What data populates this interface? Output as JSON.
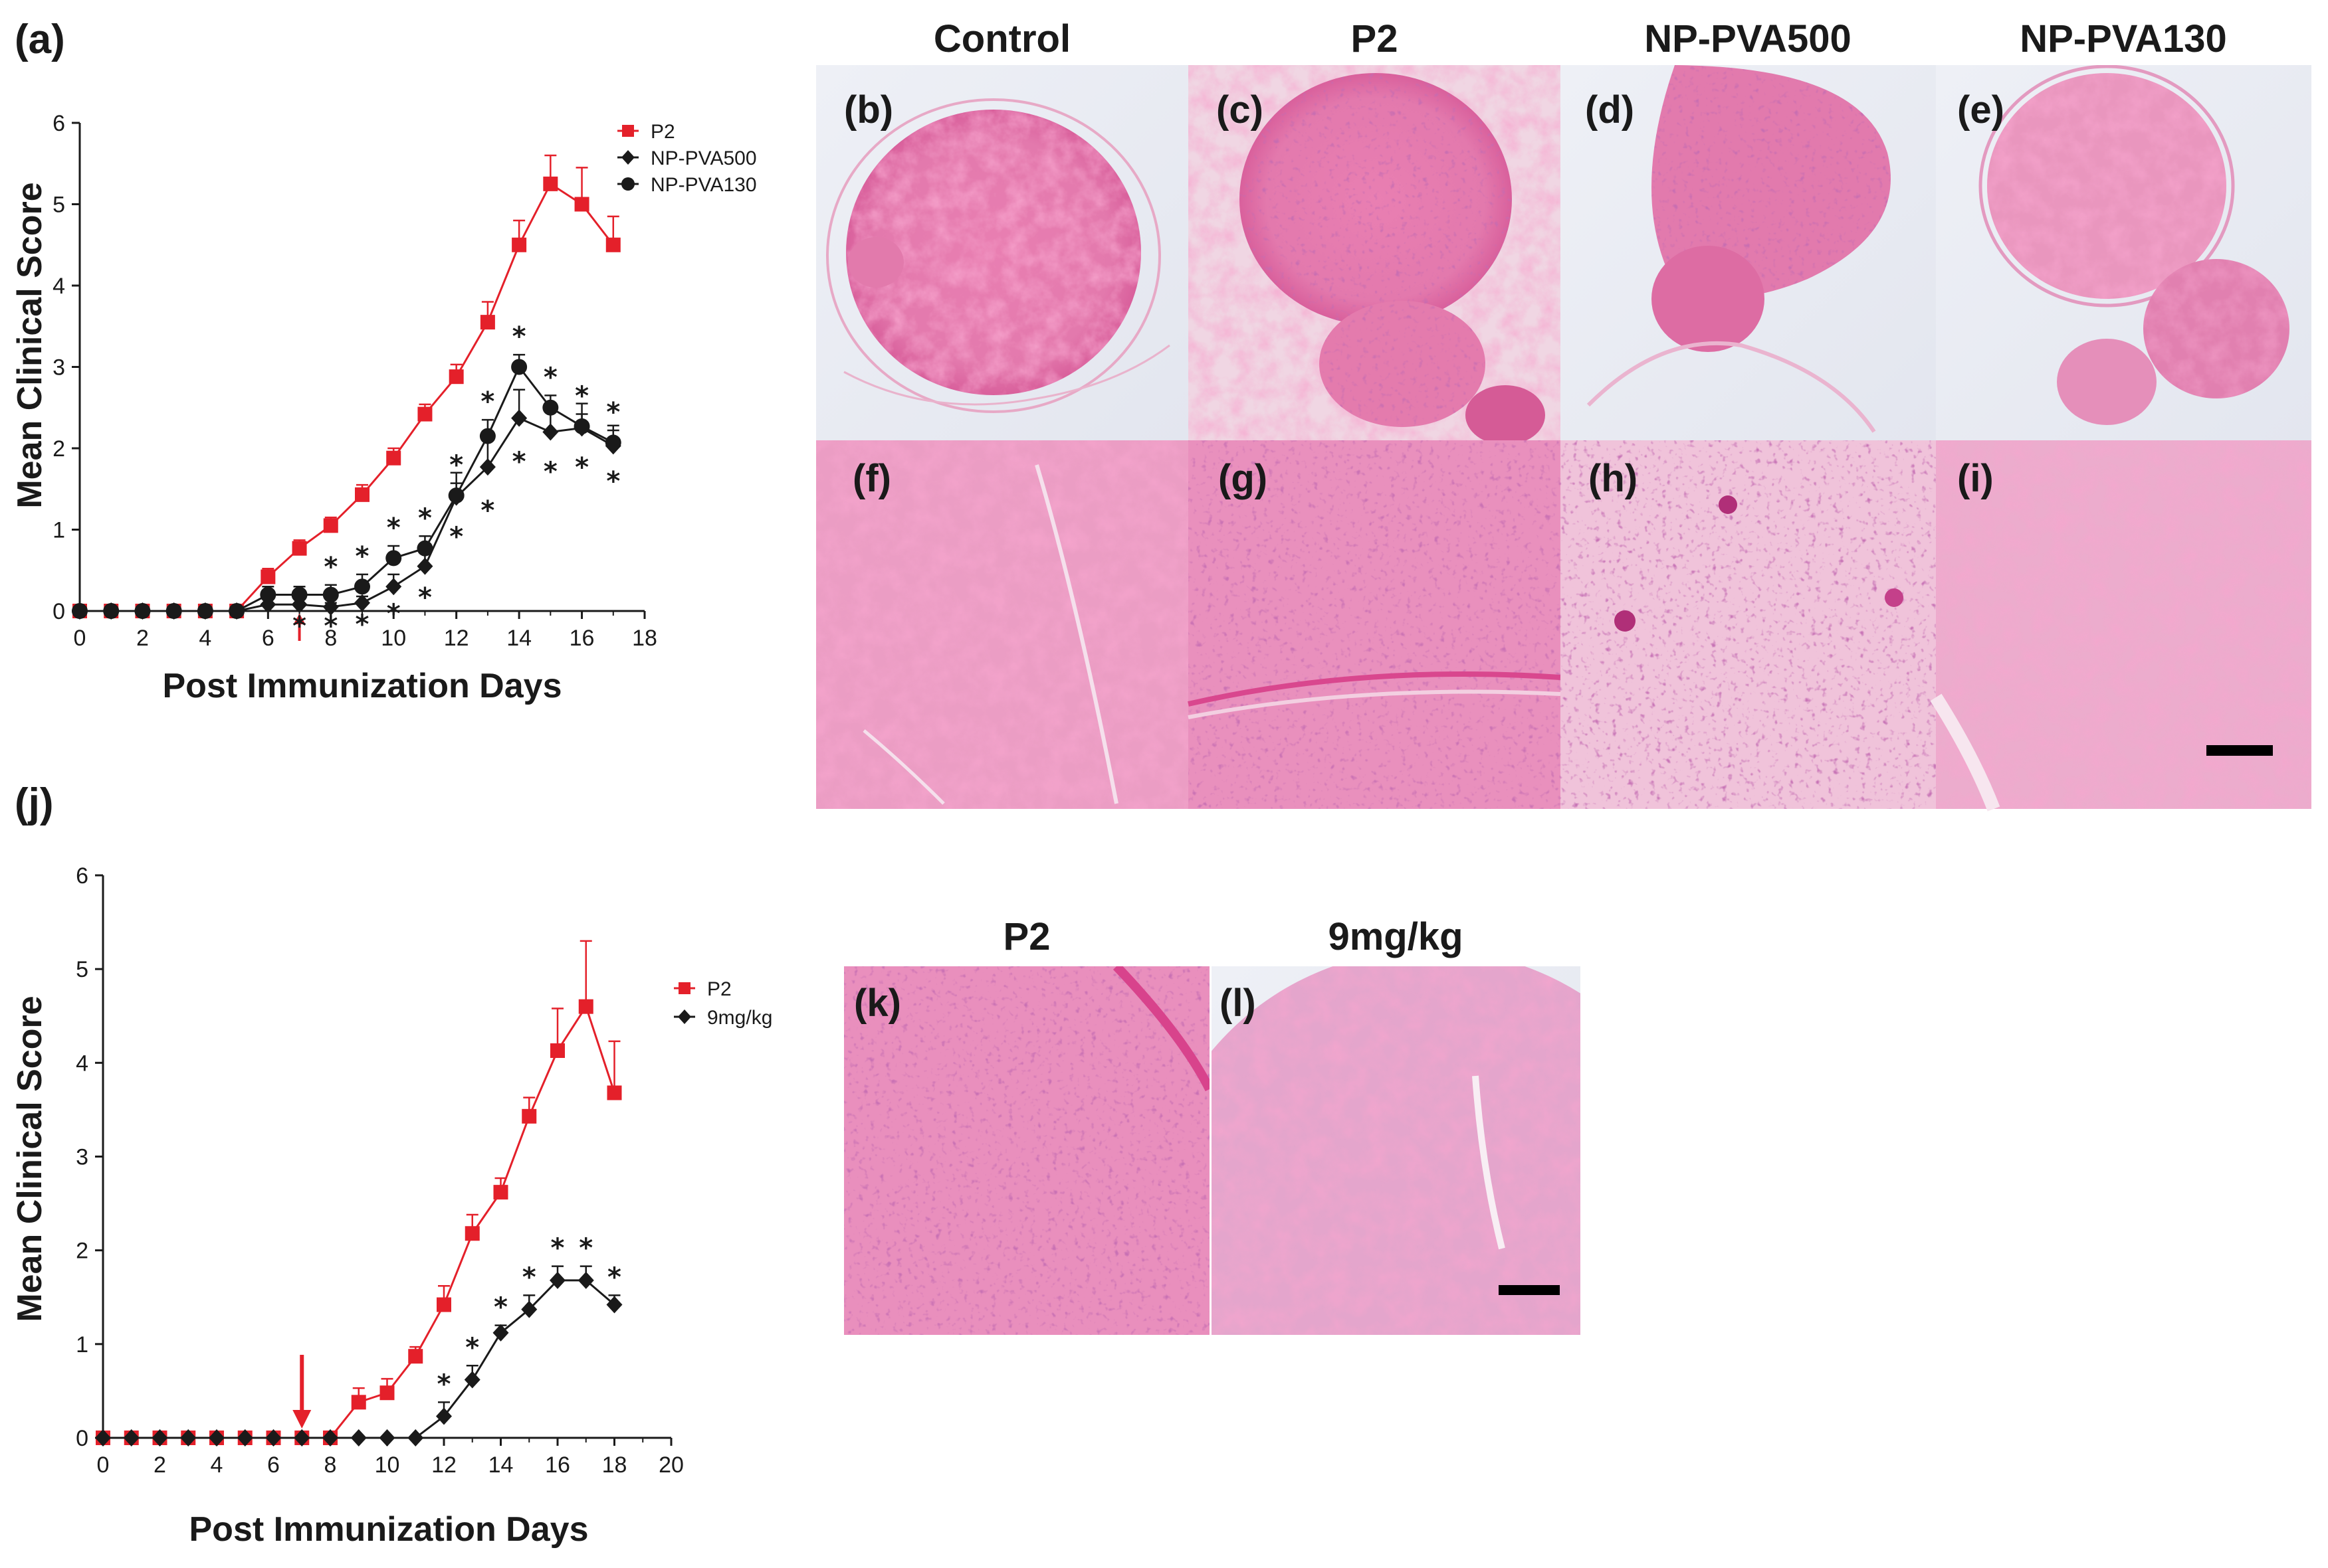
{
  "figure": {
    "colors": {
      "red": "#e4202a",
      "black": "#1a1a1a"
    },
    "top_titles": [
      "Control",
      "P2",
      "NP-PVA500",
      "NP-PVA130"
    ],
    "bottom_titles": [
      "P2",
      "9mg/kg"
    ],
    "panel_letters": {
      "a": "(a)",
      "j": "(j)",
      "b": "(b)",
      "c": "(c)",
      "d": "(d)",
      "e": "(e)",
      "f": "(f)",
      "g": "(g)",
      "h": "(h)",
      "i": "(i)",
      "k": "(k)",
      "l": "(l)"
    }
  },
  "chart_data": [
    {
      "type": "line",
      "panel": "(a)",
      "xlabel": "Post Immunization Days",
      "ylabel": "Mean Clinical Score",
      "xlim": [
        0,
        18
      ],
      "ylim": [
        0,
        6
      ],
      "xticks": [
        0,
        2,
        4,
        6,
        8,
        10,
        12,
        14,
        16,
        18
      ],
      "yticks": [
        0,
        1,
        2,
        3,
        4,
        5,
        6
      ],
      "arrow_day": 7,
      "legend_position": "top-right",
      "series": [
        {
          "name": "P2",
          "color": "#e4202a",
          "marker": "square",
          "x": [
            0,
            1,
            2,
            3,
            4,
            5,
            6,
            7,
            8,
            9,
            10,
            11,
            12,
            13,
            14,
            15,
            16,
            17
          ],
          "y": [
            0,
            0,
            0,
            0,
            0,
            0,
            0.42,
            0.77,
            1.05,
            1.43,
            1.88,
            2.42,
            2.88,
            3.55,
            4.5,
            5.25,
            5.0,
            4.5
          ],
          "err": [
            0,
            0,
            0,
            0,
            0,
            0,
            0.1,
            0.1,
            0.1,
            0.12,
            0.12,
            0.12,
            0.15,
            0.25,
            0.3,
            0.35,
            0.45,
            0.35
          ]
        },
        {
          "name": "NP-PVA500",
          "color": "#1a1a1a",
          "marker": "diamond",
          "x": [
            0,
            1,
            2,
            3,
            4,
            5,
            6,
            7,
            8,
            9,
            10,
            11,
            12,
            13,
            14,
            15,
            16,
            17
          ],
          "y": [
            0,
            0,
            0,
            0,
            0,
            0,
            0.08,
            0.08,
            0.05,
            0.1,
            0.3,
            0.55,
            1.4,
            1.77,
            2.37,
            2.2,
            2.25,
            2.03
          ],
          "err": [
            0,
            0,
            0,
            0,
            0,
            0,
            0.08,
            0.08,
            0.05,
            0.08,
            0.15,
            0.2,
            0.3,
            0.35,
            0.35,
            0.3,
            0.3,
            0.25
          ],
          "stars": [
            7,
            8,
            9,
            10,
            11,
            12,
            13,
            14,
            15,
            16,
            17
          ]
        },
        {
          "name": "NP-PVA130",
          "color": "#1a1a1a",
          "marker": "circle",
          "x": [
            0,
            1,
            2,
            3,
            4,
            5,
            6,
            7,
            8,
            9,
            10,
            11,
            12,
            13,
            14,
            15,
            16,
            17
          ],
          "y": [
            0,
            0,
            0,
            0,
            0,
            0,
            0.2,
            0.2,
            0.2,
            0.3,
            0.65,
            0.77,
            1.42,
            2.15,
            3.0,
            2.5,
            2.27,
            2.07
          ],
          "err": [
            0,
            0,
            0,
            0,
            0,
            0,
            0.1,
            0.1,
            0.12,
            0.15,
            0.15,
            0.15,
            0.15,
            0.2,
            0.15,
            0.15,
            0.15,
            0.15
          ],
          "stars": [
            8,
            9,
            10,
            11,
            12,
            13,
            14,
            15,
            16,
            17
          ]
        }
      ]
    },
    {
      "type": "line",
      "panel": "(j)",
      "xlabel": "Post Immunization Days",
      "ylabel": "Mean Clinical Score",
      "xlim": [
        0,
        20
      ],
      "ylim": [
        0,
        6
      ],
      "xticks": [
        0,
        2,
        4,
        6,
        8,
        10,
        12,
        14,
        16,
        18,
        20
      ],
      "yticks": [
        0,
        1,
        2,
        3,
        4,
        5,
        6
      ],
      "arrow_day": 7,
      "legend_position": "top-right",
      "series": [
        {
          "name": "P2",
          "color": "#e4202a",
          "marker": "square",
          "x": [
            0,
            1,
            2,
            3,
            4,
            5,
            6,
            7,
            8,
            9,
            10,
            11,
            12,
            13,
            14,
            15,
            16,
            17,
            18
          ],
          "y": [
            0,
            0,
            0,
            0,
            0,
            0,
            0,
            0,
            0,
            0.38,
            0.48,
            0.87,
            1.42,
            2.18,
            2.62,
            3.43,
            4.13,
            4.6,
            3.68
          ],
          "err": [
            0,
            0,
            0,
            0,
            0,
            0,
            0,
            0,
            0,
            0.15,
            0.15,
            0.1,
            0.2,
            0.2,
            0.15,
            0.2,
            0.45,
            0.7,
            0.55
          ]
        },
        {
          "name": "9mg/kg",
          "color": "#1a1a1a",
          "marker": "diamond",
          "x": [
            0,
            1,
            2,
            3,
            4,
            5,
            6,
            7,
            8,
            9,
            10,
            11,
            12,
            13,
            14,
            15,
            16,
            17,
            18
          ],
          "y": [
            0,
            0,
            0,
            0,
            0,
            0,
            0,
            0,
            0,
            0,
            0,
            0,
            0.23,
            0.62,
            1.12,
            1.37,
            1.68,
            1.68,
            1.42
          ],
          "err": [
            0,
            0,
            0,
            0,
            0,
            0,
            0,
            0,
            0,
            0,
            0,
            0,
            0.15,
            0.15,
            0.08,
            0.15,
            0.15,
            0.15,
            0.1
          ],
          "stars": [
            12,
            13,
            14,
            15,
            16,
            17,
            18
          ]
        }
      ]
    }
  ]
}
